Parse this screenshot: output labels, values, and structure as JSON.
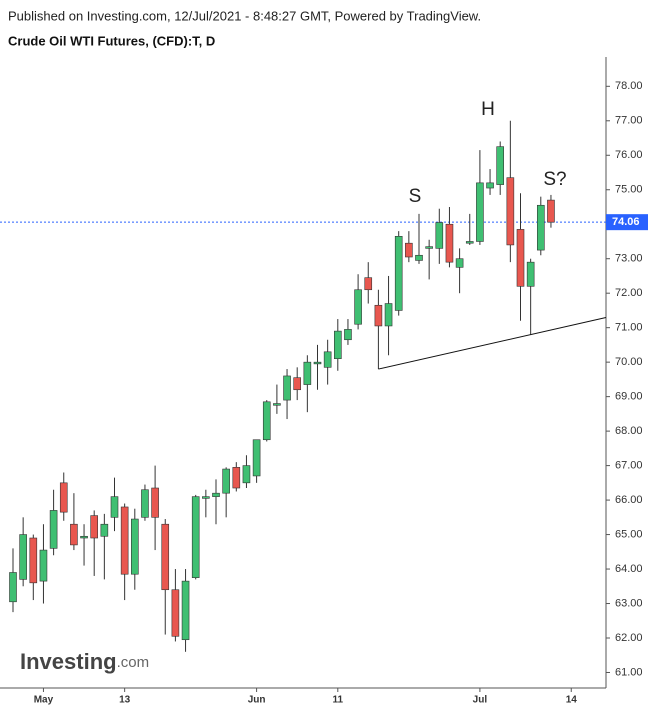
{
  "header": {
    "published": "Published on Investing.com, 12/Jul/2021 - 8:48:27 GMT, Powered by TradingView."
  },
  "logo": {
    "name": "Investing",
    "suffix": ".com"
  },
  "chart_data": {
    "type": "candlestick",
    "title": "Crude Oil WTI Futures, (CFD):T, D",
    "categories": [
      null,
      null,
      null,
      "May",
      null,
      null,
      null,
      null,
      null,
      null,
      null,
      "13",
      null,
      null,
      null,
      null,
      null,
      null,
      null,
      null,
      null,
      null,
      null,
      null,
      "Jun",
      null,
      null,
      null,
      null,
      null,
      null,
      null,
      "11",
      null,
      null,
      null,
      null,
      null,
      null,
      null,
      null,
      null,
      null,
      null,
      null,
      null,
      "Jul",
      null,
      null,
      null,
      null,
      null,
      null,
      null,
      null,
      "14"
    ],
    "open": [
      63.05,
      63.7,
      64.9,
      63.65,
      64.6,
      66.5,
      65.3,
      64.9,
      65.55,
      64.95,
      65.5,
      65.8,
      63.85,
      65.5,
      66.35,
      65.3,
      63.4,
      61.95,
      63.75,
      66.05,
      66.1,
      66.2,
      66.95,
      66.5,
      66.7,
      67.75,
      68.75,
      68.9,
      69.55,
      69.35,
      69.95,
      69.85,
      70.1,
      70.65,
      71.1,
      72.45,
      71.65,
      71.05,
      71.5,
      73.45,
      72.95,
      73.3,
      73.3,
      74.0,
      72.75,
      73.45,
      73.5,
      75.05,
      75.15,
      75.35,
      73.85,
      72.2,
      73.25,
      74.7,
      null,
      null
    ],
    "high": [
      64.6,
      65.5,
      65.0,
      65.3,
      66.3,
      66.8,
      66.2,
      65.3,
      65.7,
      65.6,
      66.65,
      65.9,
      65.75,
      66.45,
      67.0,
      65.45,
      64.0,
      64.0,
      66.15,
      66.3,
      66.6,
      66.95,
      67.1,
      67.3,
      67.75,
      68.9,
      69.35,
      69.8,
      69.85,
      70.2,
      70.5,
      70.65,
      71.25,
      71.25,
      72.55,
      72.9,
      72.1,
      72.5,
      73.8,
      73.8,
      74.3,
      73.55,
      74.45,
      74.5,
      73.3,
      74.3,
      76.15,
      75.6,
      76.4,
      77.0,
      74.9,
      73.0,
      74.8,
      74.85,
      null,
      null
    ],
    "low": [
      62.75,
      63.5,
      63.1,
      63.0,
      64.4,
      65.4,
      64.55,
      64.1,
      63.8,
      63.7,
      65.1,
      63.1,
      63.4,
      65.4,
      64.55,
      62.1,
      61.9,
      61.6,
      63.7,
      65.5,
      65.3,
      65.5,
      66.25,
      66.35,
      66.5,
      67.7,
      68.5,
      68.35,
      68.9,
      68.55,
      69.2,
      69.35,
      69.75,
      70.5,
      70.95,
      71.7,
      69.8,
      70.2,
      71.35,
      72.9,
      72.85,
      72.4,
      72.85,
      72.75,
      72.0,
      73.4,
      73.4,
      74.85,
      74.85,
      72.9,
      71.2,
      70.8,
      73.1,
      73.9,
      null,
      null
    ],
    "close": [
      63.9,
      65.0,
      63.6,
      64.55,
      65.7,
      65.65,
      64.7,
      64.95,
      64.9,
      65.3,
      66.1,
      63.85,
      65.45,
      66.3,
      65.5,
      63.4,
      62.05,
      63.65,
      66.1,
      66.1,
      66.2,
      66.9,
      66.35,
      67.0,
      67.75,
      68.85,
      68.8,
      69.6,
      69.2,
      70.0,
      70.0,
      70.3,
      70.9,
      70.95,
      72.1,
      72.1,
      71.05,
      71.7,
      73.65,
      73.05,
      73.1,
      73.35,
      74.05,
      72.9,
      73.0,
      73.5,
      75.2,
      75.2,
      76.25,
      73.4,
      72.2,
      72.9,
      74.55,
      74.06,
      null,
      null
    ],
    "up_color": "#3fbf72",
    "down_color": "#e8574f",
    "last_price": 74.06,
    "last_price_color": "#2962ff",
    "annotations": [
      {
        "text": "S"
      },
      {
        "text": "H"
      },
      {
        "text": "S?"
      }
    ],
    "ylim": [
      60.55,
      78.85
    ],
    "yticks": [
      {
        "value": 61,
        "label": "61.00"
      },
      {
        "value": 62,
        "label": "62.00"
      },
      {
        "value": 63,
        "label": "63.00"
      },
      {
        "value": 64,
        "label": "64.00"
      },
      {
        "value": 65,
        "label": "65.00"
      },
      {
        "value": 66,
        "label": "66.00"
      },
      {
        "value": 67,
        "label": "67.00"
      },
      {
        "value": 68,
        "label": "68.00"
      },
      {
        "value": 69,
        "label": "69.00"
      },
      {
        "value": 70,
        "label": "70.00"
      },
      {
        "value": 71,
        "label": "71.00"
      },
      {
        "value": 72,
        "label": "72.00"
      },
      {
        "value": 73,
        "label": "73.00"
      },
      {
        "value": 74,
        "label": "74.00"
      },
      {
        "value": 75,
        "label": "75.00"
      },
      {
        "value": 76,
        "label": "76.00"
      },
      {
        "value": 77,
        "label": "77.00"
      },
      {
        "value": 78,
        "label": "78.00"
      }
    ]
  }
}
